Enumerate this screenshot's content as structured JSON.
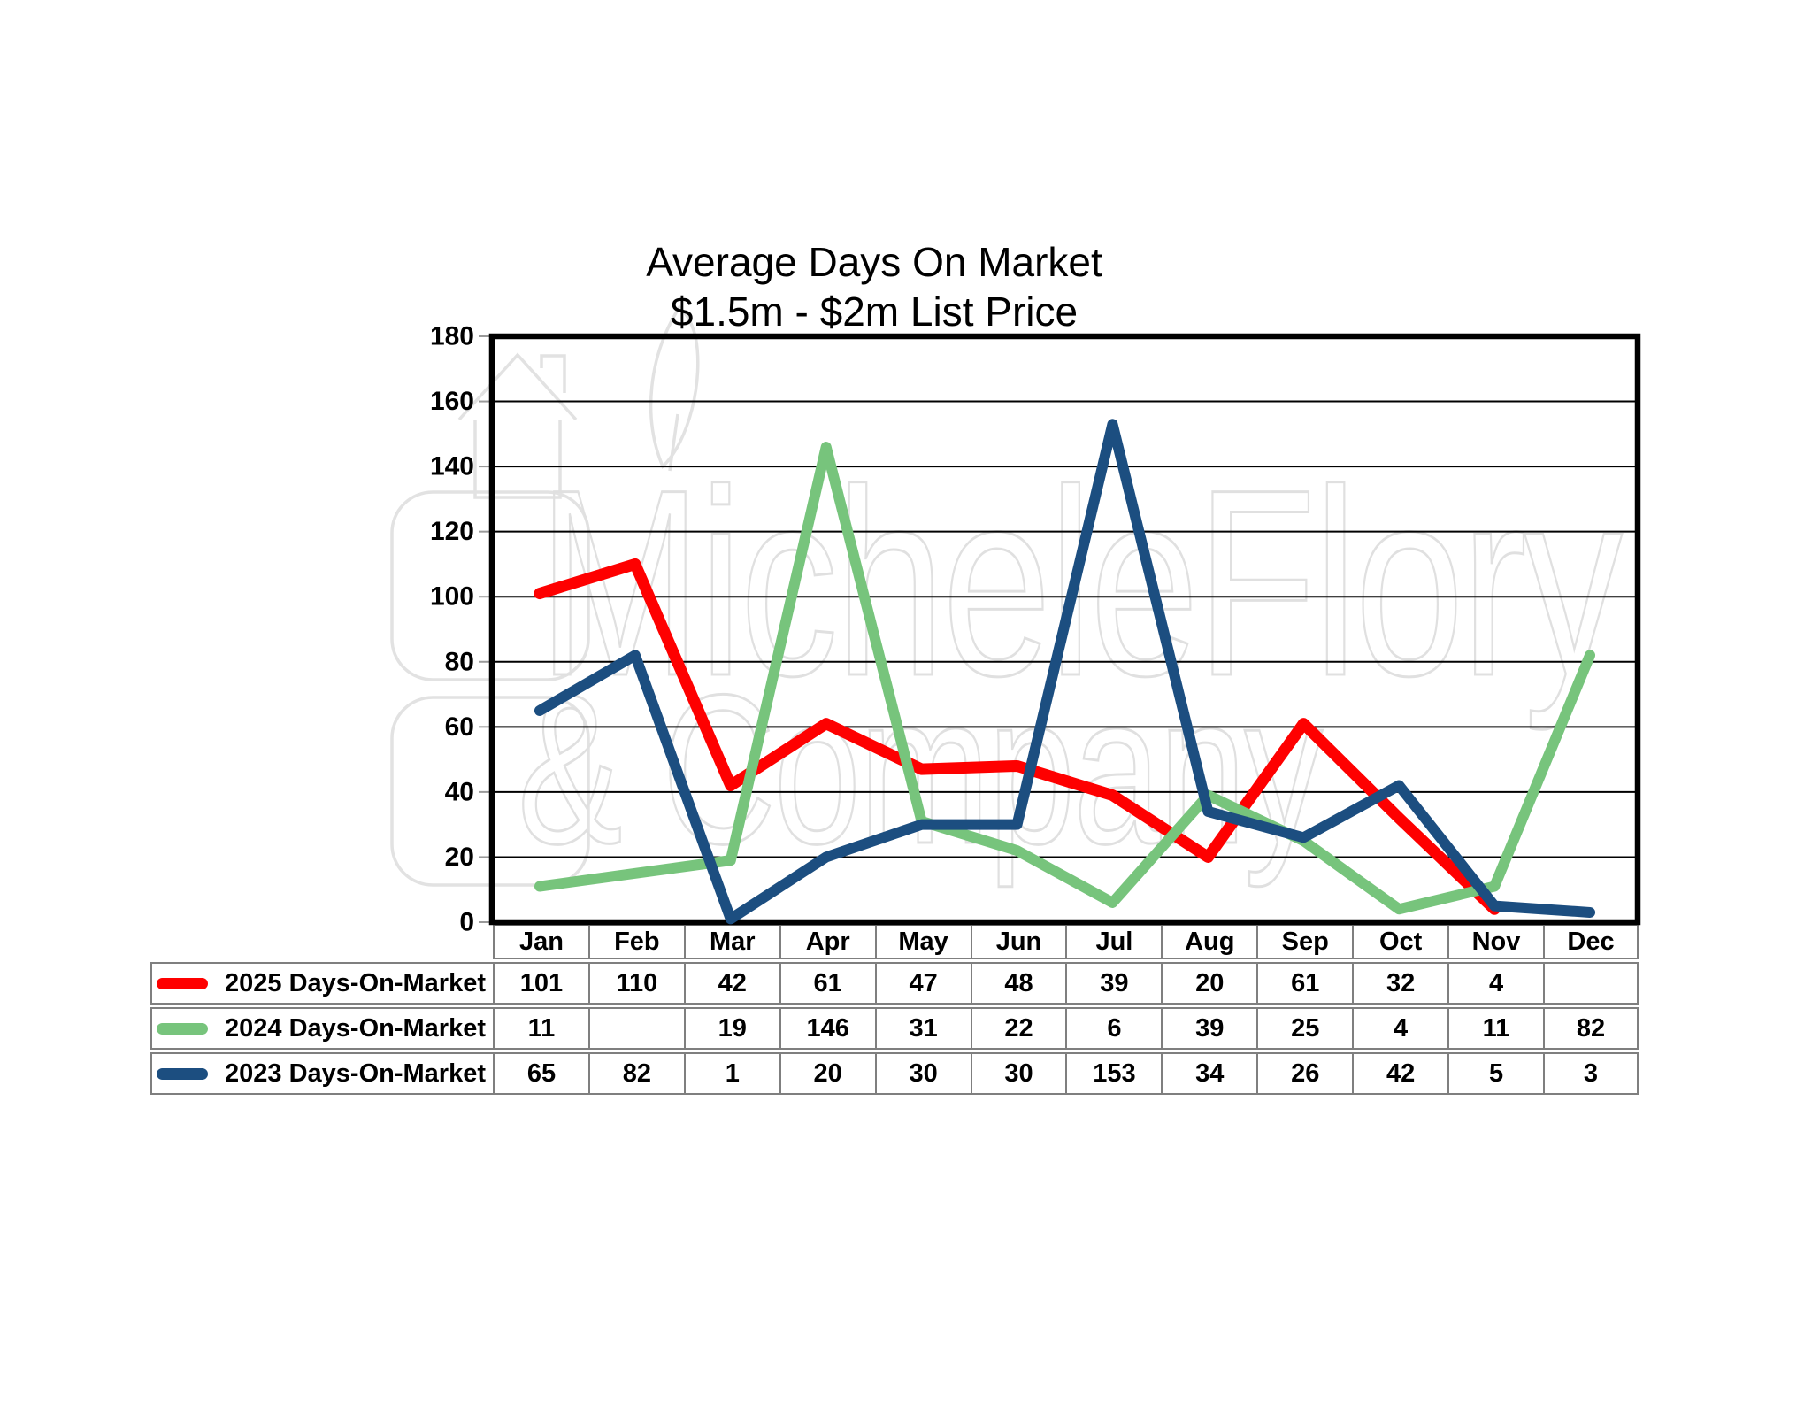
{
  "title": {
    "line1": "Average Days On Market",
    "line2": "$1.5m - $2m List Price"
  },
  "watermark": {
    "line1": "MicheleFlory",
    "line2": "& Company"
  },
  "chart_data": {
    "type": "line",
    "title": "Average Days On Market $1.5m - $2m List Price",
    "categories": [
      "Jan",
      "Feb",
      "Mar",
      "Apr",
      "May",
      "Jun",
      "Jul",
      "Aug",
      "Sep",
      "Oct",
      "Nov",
      "Dec"
    ],
    "series": [
      {
        "name": "2025 Days-On-Market",
        "color": "#fe0000",
        "values": [
          101,
          110,
          42,
          61,
          47,
          48,
          39,
          20,
          61,
          32,
          4,
          null
        ]
      },
      {
        "name": "2024 Days-On-Market",
        "color": "#77c47c",
        "values": [
          11,
          null,
          19,
          146,
          31,
          22,
          6,
          39,
          25,
          4,
          11,
          82
        ]
      },
      {
        "name": "2023 Days-On-Market",
        "color": "#1c4e80",
        "values": [
          65,
          82,
          1,
          20,
          30,
          30,
          153,
          34,
          26,
          42,
          5,
          3
        ]
      }
    ],
    "ylim": [
      0,
      180
    ],
    "yticks": [
      0,
      20,
      40,
      60,
      80,
      100,
      120,
      140,
      160,
      180
    ],
    "grid": "horizontal",
    "legend_position": "table-left",
    "gridline_color": "#000000",
    "border_color": "#000000",
    "table_border_color": "#7f7f7f"
  }
}
